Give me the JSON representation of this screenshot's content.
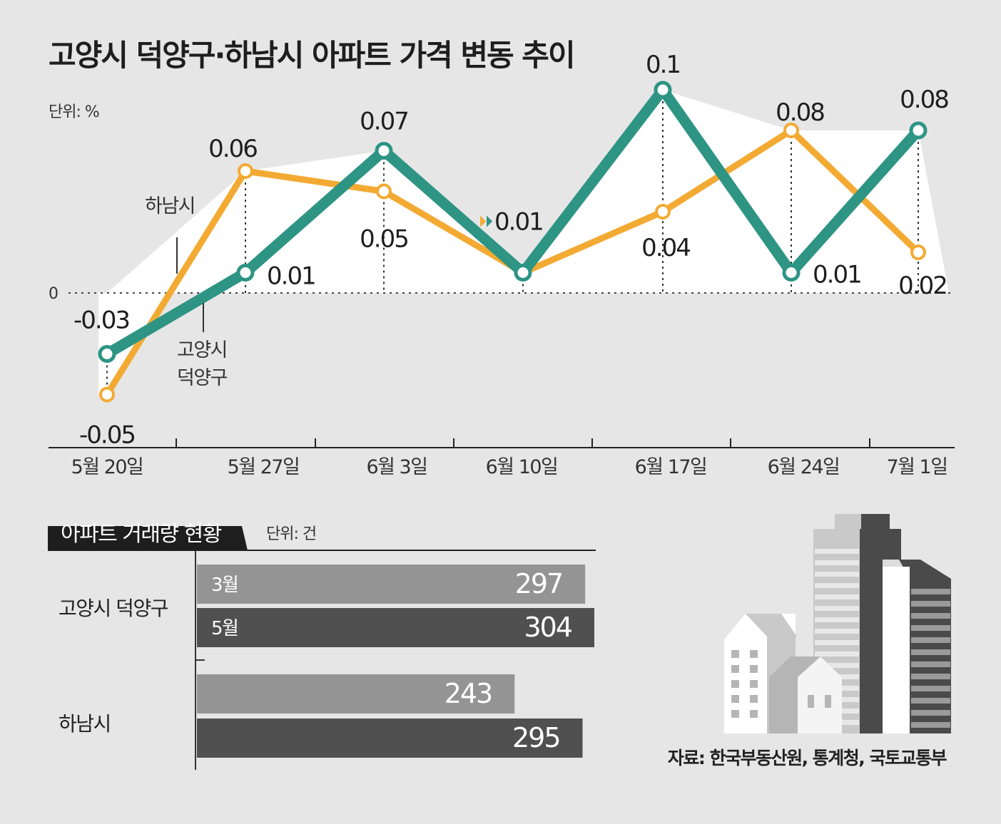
{
  "title": "고양시 덕양구·하남시 아파트 가격 변동 추이",
  "line_unit": "단위: %",
  "colors": {
    "goyang": "#2e9484",
    "hanam": "#f3aa33",
    "bar_light": "#949494",
    "bar_dark": "#505050"
  },
  "chart_data": [
    {
      "type": "line",
      "title": "고양시 덕양구·하남시 아파트 가격 변동 추이",
      "unit": "단위: %",
      "zero_label": "0",
      "categories": [
        "5월 20일",
        "5월 27일",
        "6월 3일",
        "6월 10일",
        "6월 17일",
        "6월 24일",
        "7월 1일"
      ],
      "ylim": [
        -0.06,
        0.11
      ],
      "series": [
        {
          "name": "고양시 덕양구",
          "label_lines": [
            "고양시",
            "덕양구"
          ],
          "values": [
            -0.03,
            0.01,
            0.07,
            0.01,
            0.1,
            0.01,
            0.08
          ],
          "value_labels": [
            "-0.03",
            "0.01",
            "0.07",
            "0.01",
            "0.1",
            "0.01",
            "0.08"
          ]
        },
        {
          "name": "하남시",
          "label_lines": [
            "하남시"
          ],
          "values": [
            -0.05,
            0.06,
            0.05,
            0.01,
            0.04,
            0.08,
            0.02
          ],
          "value_labels": [
            "-0.05",
            "0.06",
            "0.05",
            "0.01",
            "0.04",
            "0.08",
            "0.02"
          ]
        }
      ]
    },
    {
      "type": "bar",
      "title": "아파트 거래량 현황",
      "unit": "단위: 건",
      "groups": [
        {
          "name": "고양시 덕양구",
          "bars": [
            {
              "month": "3월",
              "value": 297
            },
            {
              "month": "5월",
              "value": 304
            }
          ]
        },
        {
          "name": "하남시",
          "bars": [
            {
              "month": "",
              "value": 243
            },
            {
              "month": "",
              "value": 295
            }
          ]
        }
      ],
      "xlim": [
        0,
        304
      ]
    }
  ],
  "source": "자료: 한국부동산원, 통계청, 국토교통부"
}
